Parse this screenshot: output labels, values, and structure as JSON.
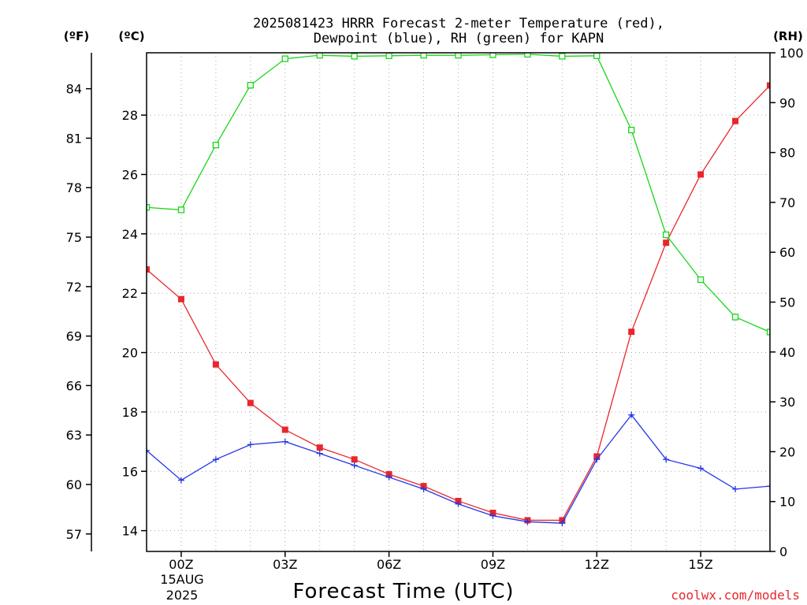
{
  "title_line1": "2025081423 HRRR Forecast 2-meter Temperature (red),",
  "title_line2": "Dewpoint (blue), RH (green) for KAPN",
  "unit_f": "(ºF)",
  "unit_c": "(ºC)",
  "unit_rh": "(RH)",
  "x_axis_label": "Forecast Time (UTC)",
  "date_label_line1": "15AUG",
  "date_label_line2": "2025",
  "credit": "coolwx.com/models",
  "colors": {
    "temperature": "#e8272c",
    "dewpoint": "#2436e8",
    "rh": "#19d619",
    "grid": "#aaaaaa"
  },
  "chart_data": {
    "type": "line",
    "grid": true,
    "x_ticks": [
      {
        "hour": 0,
        "label": "00Z"
      },
      {
        "hour": 3,
        "label": "03Z"
      },
      {
        "hour": 6,
        "label": "06Z"
      },
      {
        "hour": 9,
        "label": "09Z"
      },
      {
        "hour": 12,
        "label": "12Z"
      },
      {
        "hour": 15,
        "label": "15Z"
      }
    ],
    "x_range_hours": [
      -1,
      17
    ],
    "celsius_axis": {
      "range": [
        13.3,
        30.1
      ],
      "ticks": [
        14,
        16,
        18,
        20,
        22,
        24,
        26,
        28
      ]
    },
    "fahrenheit_axis": {
      "ticks": [
        57,
        60,
        63,
        66,
        69,
        72,
        75,
        78,
        81,
        84
      ]
    },
    "rh_axis": {
      "range": [
        0,
        100
      ],
      "ticks": [
        0,
        10,
        20,
        30,
        40,
        50,
        60,
        70,
        80,
        90,
        100
      ]
    },
    "x": [
      -1,
      0,
      1,
      2,
      3,
      4,
      5,
      6,
      7,
      8,
      9,
      10,
      11,
      12,
      13,
      14,
      15,
      16,
      17
    ],
    "series": [
      {
        "name": "Temperature (red)",
        "axis": "celsius",
        "color": "#e8272c",
        "marker": "filled-square",
        "values": [
          22.8,
          21.8,
          19.6,
          18.3,
          17.4,
          16.8,
          16.4,
          15.9,
          15.5,
          15.0,
          14.6,
          14.35,
          14.35,
          16.5,
          20.7,
          23.7,
          26.0,
          27.8,
          29.0
        ]
      },
      {
        "name": "Dewpoint (blue)",
        "axis": "celsius",
        "color": "#2436e8",
        "marker": "plus",
        "values": [
          16.7,
          15.7,
          16.4,
          16.9,
          17.0,
          16.6,
          16.2,
          15.8,
          15.4,
          14.9,
          14.5,
          14.3,
          14.25,
          16.4,
          17.9,
          16.4,
          16.1,
          15.4,
          15.5
        ]
      },
      {
        "name": "RH (green)",
        "axis": "rh",
        "color": "#19d619",
        "marker": "open-square",
        "values": [
          69.0,
          68.5,
          81.5,
          93.5,
          98.8,
          99.5,
          99.3,
          99.4,
          99.5,
          99.5,
          99.6,
          99.7,
          99.3,
          99.4,
          84.5,
          63.5,
          54.5,
          47.0,
          44.0
        ]
      }
    ]
  }
}
